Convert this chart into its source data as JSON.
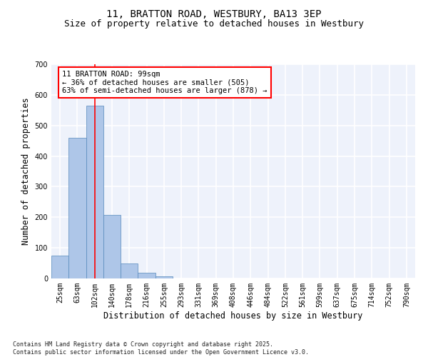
{
  "title_line1": "11, BRATTON ROAD, WESTBURY, BA13 3EP",
  "title_line2": "Size of property relative to detached houses in Westbury",
  "xlabel": "Distribution of detached houses by size in Westbury",
  "ylabel": "Number of detached properties",
  "categories": [
    "25sqm",
    "63sqm",
    "102sqm",
    "140sqm",
    "178sqm",
    "216sqm",
    "255sqm",
    "293sqm",
    "331sqm",
    "369sqm",
    "408sqm",
    "446sqm",
    "484sqm",
    "522sqm",
    "561sqm",
    "599sqm",
    "637sqm",
    "675sqm",
    "714sqm",
    "752sqm",
    "790sqm"
  ],
  "values": [
    75,
    460,
    565,
    207,
    50,
    18,
    8,
    0,
    0,
    0,
    0,
    0,
    0,
    0,
    0,
    0,
    0,
    0,
    0,
    0,
    0
  ],
  "bar_color": "#aec6e8",
  "bar_edge_color": "#5588bb",
  "bar_width": 1.0,
  "property_line_x": 2.0,
  "annotation_text": "11 BRATTON ROAD: 99sqm\n← 36% of detached houses are smaller (505)\n63% of semi-detached houses are larger (878) →",
  "annotation_box_color": "white",
  "annotation_box_edge_color": "red",
  "vline_color": "red",
  "ylim": [
    0,
    700
  ],
  "yticks": [
    0,
    100,
    200,
    300,
    400,
    500,
    600,
    700
  ],
  "bg_color": "#eef2fb",
  "grid_color": "white",
  "footnote": "Contains HM Land Registry data © Crown copyright and database right 2025.\nContains public sector information licensed under the Open Government Licence v3.0.",
  "title_fontsize": 10,
  "subtitle_fontsize": 9,
  "axis_label_fontsize": 8.5,
  "tick_fontsize": 7,
  "annotation_fontsize": 7.5,
  "footnote_fontsize": 6
}
